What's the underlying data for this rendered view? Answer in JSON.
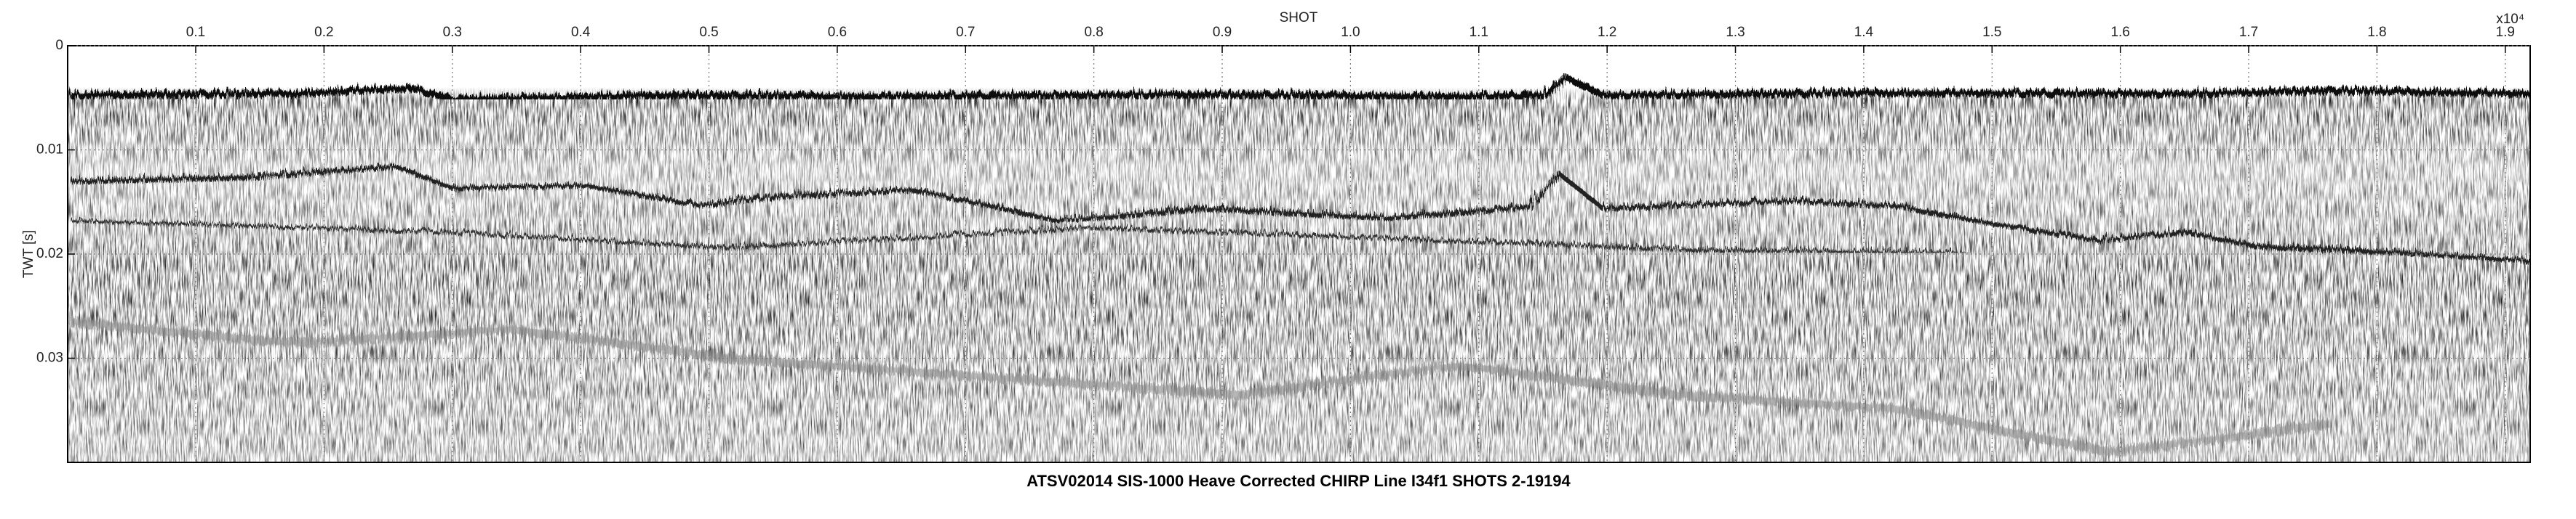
{
  "chart_data": {
    "type": "image",
    "title": "ATSV02014 SIS-1000 Heave Corrected CHIRP Line I34f1 SHOTS 2-19194",
    "x_label": "SHOT",
    "x_multiplier": "x10⁴",
    "y_label": "TWT [s]",
    "xlim": [
      0.0002,
      1.9194
    ],
    "xticks": [
      0.1,
      0.2,
      0.3,
      0.4,
      0.5,
      0.6,
      0.7,
      0.8,
      0.9,
      {
        "value": 1,
        "label": "1.0"
      },
      1.1,
      1.2,
      1.3,
      1.4,
      1.5,
      1.6,
      1.7,
      1.8,
      1.9
    ],
    "ylim": [
      0,
      0.04
    ],
    "yticks": [
      0,
      0.01,
      0.02,
      0.03
    ],
    "y_reversed": true,
    "grid": true
  }
}
